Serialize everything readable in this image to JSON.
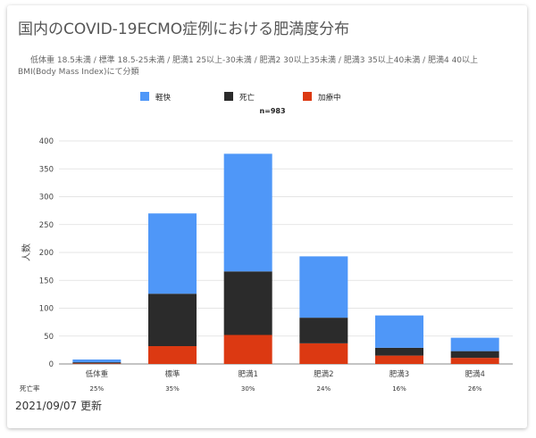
{
  "title": "国内のCOVID-19ECMO症例における肥満度分布",
  "subtitle": "低体重 18.5未満 / 標準 18.5-25未満 / 肥満1 25以上-30未満 / 肥満2 30以上35未満 / 肥満3 35以上40未満 / 肥満4 40以上　BMI(Body Mass Index)にて分類",
  "footer": {
    "updated": "2021/09/07 更新"
  },
  "chart_data": {
    "type": "bar",
    "stacked": true,
    "categories": [
      "低体重",
      "標準",
      "肥満1",
      "肥満2",
      "肥満3",
      "肥満4"
    ],
    "series": [
      {
        "name": "加療中",
        "color": "#DC3912",
        "values": [
          1,
          32,
          52,
          37,
          15,
          11
        ]
      },
      {
        "name": "死亡",
        "color": "#2B2B2B",
        "values": [
          2,
          94,
          114,
          46,
          14,
          12
        ]
      },
      {
        "name": "軽快",
        "color": "#4F97F8",
        "values": [
          5,
          144,
          211,
          110,
          58,
          24
        ]
      }
    ],
    "legend_order": [
      "軽快",
      "死亡",
      "加療中"
    ],
    "legend_position": "top",
    "n_label": "n=983",
    "ylabel": "人数",
    "ylim": [
      0,
      400
    ],
    "yticks": [
      0,
      50,
      100,
      150,
      200,
      250,
      300,
      350,
      400
    ],
    "grid": true,
    "mortality": {
      "label": "死亡率",
      "values": [
        "25%",
        "35%",
        "30%",
        "24%",
        "16%",
        "26%"
      ]
    }
  }
}
